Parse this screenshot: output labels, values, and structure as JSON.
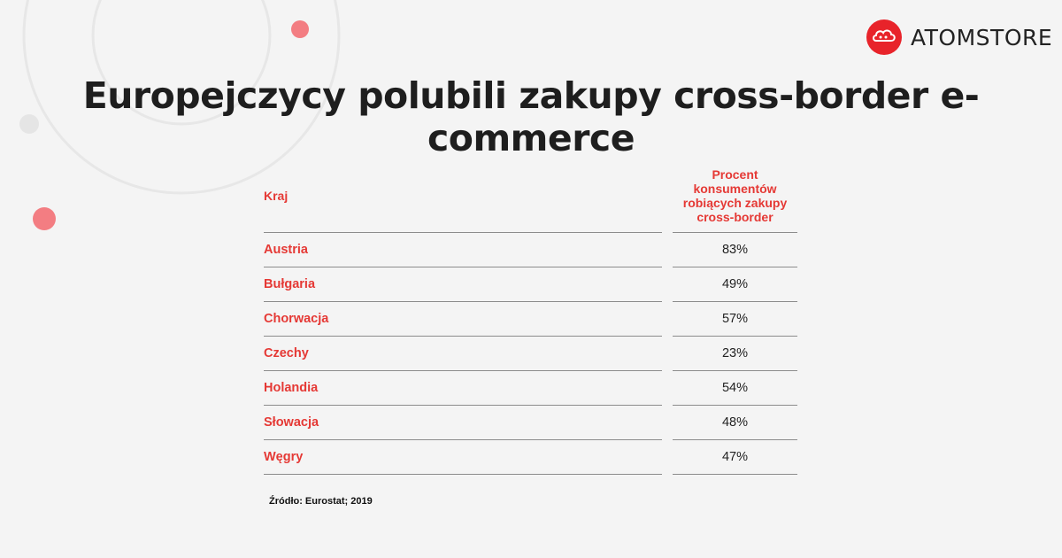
{
  "brand": {
    "name": "ATOMSTORE",
    "logo_icon": "cloud-logo-icon",
    "logo_color": "#e8232a"
  },
  "title": "Europejczycy polubili zakupy cross-border e-commerce",
  "source": "Źródło: Eurostat; 2019",
  "chart_data": {
    "type": "table",
    "title": "Europejczycy polubili zakupy cross-border e-commerce",
    "columns": [
      "Kraj",
      "Procent konsumentów robiących zakupy cross-border"
    ],
    "header_lines": [
      "Procent",
      "konsumentów",
      "robiących zakupy",
      "cross-border"
    ],
    "rows": [
      {
        "country": "Austria",
        "value": "83%"
      },
      {
        "country": "Bułgaria",
        "value": "49%"
      },
      {
        "country": "Chorwacja",
        "value": "57%"
      },
      {
        "country": "Czechy",
        "value": "23%"
      },
      {
        "country": "Holandia",
        "value": "54%"
      },
      {
        "country": "Słowacja",
        "value": "48%"
      },
      {
        "country": "Węgry",
        "value": "47%"
      }
    ]
  },
  "colors": {
    "accent": "#e53935",
    "text": "#1e1e1e",
    "background": "#f4f4f4",
    "decor_dot": "#f37d82",
    "decor_line": "#e6e6e6"
  }
}
